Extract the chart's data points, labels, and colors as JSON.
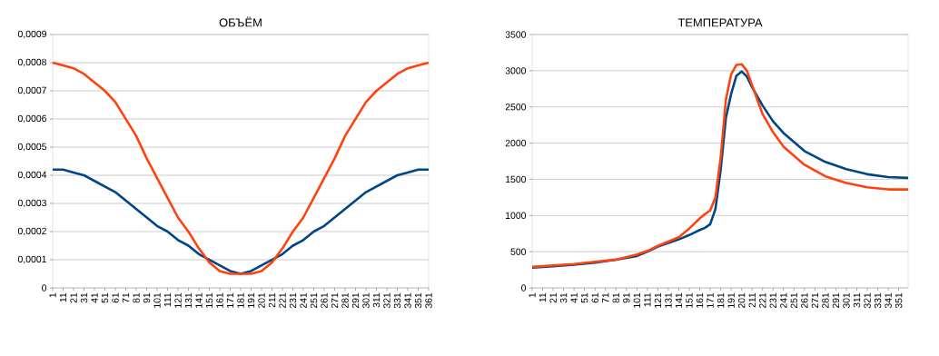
{
  "chart_data": [
    {
      "type": "line",
      "title": "ОБЪЁМ",
      "grid": "y",
      "x": [
        1,
        11,
        21,
        31,
        41,
        51,
        61,
        71,
        81,
        91,
        101,
        111,
        121,
        131,
        141,
        151,
        161,
        171,
        181,
        191,
        201,
        211,
        221,
        231,
        241,
        251,
        261,
        271,
        281,
        291,
        301,
        311,
        321,
        331,
        341,
        351,
        361
      ],
      "xlim": [
        1,
        361
      ],
      "xticks": [
        1,
        11,
        21,
        31,
        41,
        51,
        61,
        71,
        81,
        91,
        101,
        111,
        121,
        131,
        141,
        151,
        161,
        171,
        181,
        191,
        201,
        211,
        221,
        231,
        241,
        251,
        261,
        271,
        281,
        291,
        301,
        311,
        321,
        331,
        341,
        351,
        361
      ],
      "ylim": [
        0,
        0.0009
      ],
      "yticks": [
        0,
        {
          "value": 0.0001,
          "label": "0,0001"
        },
        {
          "value": 0.0002,
          "label": "0,0002"
        },
        {
          "value": 0.0003,
          "label": "0,0003"
        },
        {
          "value": 0.0004,
          "label": "0,0004"
        },
        {
          "value": 0.0005,
          "label": "0,0005"
        },
        {
          "value": 0.0006,
          "label": "0,0006"
        },
        {
          "value": 0.0007,
          "label": "0,0007"
        },
        {
          "value": 0.0008,
          "label": "0,0008"
        },
        {
          "value": 0.0009,
          "label": "0,0009"
        }
      ],
      "series": [
        {
          "color": "#004586",
          "values": [
            0.00042,
            0.00042,
            0.00041,
            0.0004,
            0.00038,
            0.00036,
            0.00034,
            0.00031,
            0.00028,
            0.00025,
            0.00022,
            0.0002,
            0.00017,
            0.00015,
            0.00012,
            0.0001,
            8e-05,
            6e-05,
            5e-05,
            6e-05,
            8e-05,
            0.0001,
            0.00012,
            0.00015,
            0.00017,
            0.0002,
            0.00022,
            0.00025,
            0.00028,
            0.00031,
            0.00034,
            0.00036,
            0.00038,
            0.0004,
            0.00041,
            0.00042,
            0.00042
          ]
        },
        {
          "color": "#ff420e",
          "values": [
            0.0008,
            0.00079,
            0.00078,
            0.00076,
            0.00073,
            0.0007,
            0.00066,
            0.0006,
            0.00054,
            0.00046,
            0.00039,
            0.00032,
            0.00025,
            0.0002,
            0.00014,
            9e-05,
            6e-05,
            5e-05,
            5e-05,
            5e-05,
            6e-05,
            9e-05,
            0.00014,
            0.0002,
            0.00025,
            0.00032,
            0.00039,
            0.00046,
            0.00054,
            0.0006,
            0.00066,
            0.0007,
            0.00073,
            0.00076,
            0.00078,
            0.00079,
            0.0008
          ]
        }
      ]
    },
    {
      "type": "line",
      "title": "ТЕМПЕРАТУРА",
      "grid": "y",
      "x": [
        1,
        21,
        41,
        61,
        81,
        101,
        111,
        121,
        131,
        141,
        151,
        161,
        166,
        171,
        176,
        181,
        186,
        191,
        196,
        201,
        206,
        211,
        221,
        231,
        241,
        261,
        281,
        301,
        321,
        341,
        360
      ],
      "xlim": [
        1,
        360
      ],
      "xticks": [
        1,
        11,
        21,
        31,
        41,
        51,
        61,
        71,
        81,
        91,
        101,
        111,
        121,
        131,
        141,
        151,
        161,
        171,
        181,
        191,
        201,
        211,
        221,
        231,
        241,
        251,
        261,
        271,
        281,
        291,
        301,
        311,
        321,
        331,
        341,
        351
      ],
      "ylim": [
        0,
        3500
      ],
      "yticks": [
        0,
        500,
        1000,
        1500,
        2000,
        2500,
        3000,
        3500
      ],
      "series": [
        {
          "color": "#004586",
          "values": [
            280,
            300,
            320,
            350,
            390,
            440,
            500,
            570,
            620,
            670,
            730,
            800,
            830,
            880,
            1090,
            1630,
            2350,
            2680,
            2930,
            2990,
            2920,
            2770,
            2520,
            2300,
            2140,
            1890,
            1740,
            1640,
            1570,
            1530,
            1520
          ]
        },
        {
          "color": "#ff420e",
          "values": [
            290,
            310,
            330,
            360,
            390,
            460,
            510,
            580,
            640,
            700,
            820,
            960,
            1020,
            1070,
            1250,
            1800,
            2600,
            2950,
            3080,
            3090,
            3000,
            2800,
            2400,
            2150,
            1950,
            1700,
            1540,
            1450,
            1390,
            1360,
            1360
          ]
        }
      ]
    }
  ]
}
